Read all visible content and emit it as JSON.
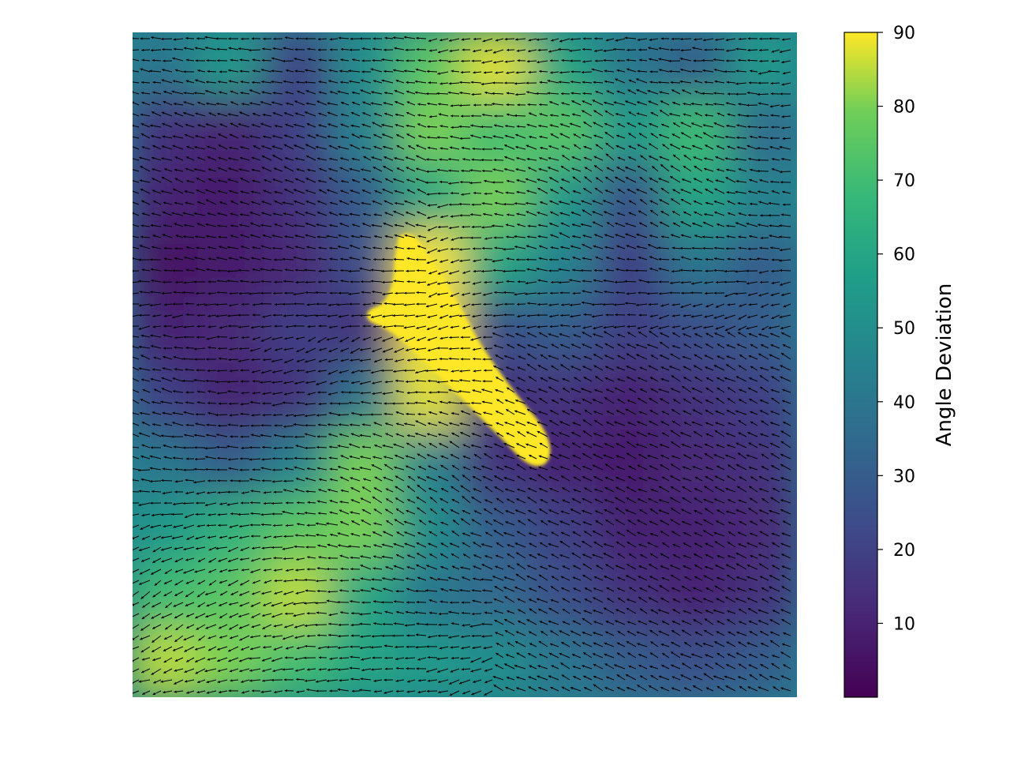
{
  "chart_data": {
    "type": "heatmap",
    "overlay": "quiver",
    "colormap": "viridis",
    "title": "",
    "xlabel": "",
    "ylabel": "",
    "axes_visible": false,
    "colorbar": {
      "label": "Angle Deviation",
      "range": [
        0,
        90
      ],
      "ticks": [
        10,
        20,
        30,
        40,
        50,
        60,
        70,
        80,
        90
      ],
      "tick_labels": [
        "10",
        "20",
        "30",
        "40",
        "50",
        "60",
        "70",
        "80",
        "90"
      ],
      "position": "right"
    },
    "grid_shape": [
      10,
      10
    ],
    "values": [
      [
        40,
        55,
        20,
        50,
        75,
        88,
        60,
        40,
        30,
        55
      ],
      [
        15,
        10,
        20,
        45,
        80,
        70,
        75,
        55,
        70,
        35
      ],
      [
        10,
        8,
        15,
        30,
        60,
        80,
        55,
        25,
        60,
        45
      ],
      [
        5,
        8,
        12,
        25,
        90,
        60,
        45,
        20,
        40,
        30
      ],
      [
        10,
        12,
        20,
        15,
        90,
        25,
        30,
        20,
        25,
        30
      ],
      [
        20,
        10,
        15,
        40,
        88,
        15,
        15,
        10,
        15,
        20
      ],
      [
        40,
        30,
        45,
        80,
        45,
        15,
        10,
        8,
        12,
        15
      ],
      [
        55,
        65,
        75,
        80,
        50,
        30,
        20,
        10,
        10,
        12
      ],
      [
        70,
        75,
        85,
        60,
        40,
        35,
        25,
        15,
        10,
        15
      ],
      [
        85,
        80,
        70,
        60,
        55,
        50,
        40,
        30,
        25,
        30
      ]
    ],
    "vector_field": "dense black arrows pointing mostly leftward / up-left across the field"
  }
}
